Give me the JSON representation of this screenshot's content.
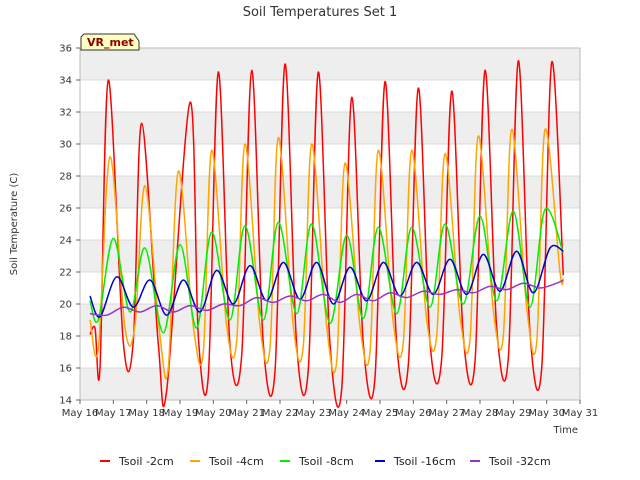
{
  "chart_data": {
    "type": "line",
    "title": "Soil Temperatures Set 1",
    "xlabel": "Time",
    "ylabel": "Soil Temperature (C)",
    "badge": "VR_met",
    "xlim": [
      16,
      31
    ],
    "ylim": [
      14,
      36
    ],
    "x_ticks": [
      "May 16",
      "May 17",
      "May 18",
      "May 19",
      "May 20",
      "May 21",
      "May 22",
      "May 23",
      "May 24",
      "May 25",
      "May 26",
      "May 27",
      "May 28",
      "May 29",
      "May 30",
      "May 31"
    ],
    "y_ticks": [
      14,
      16,
      18,
      20,
      22,
      24,
      26,
      28,
      30,
      32,
      34,
      36
    ],
    "grid": true,
    "legend_position": "bottom",
    "x_unit": "day of May",
    "series": [
      {
        "name": "Tsoil -2cm",
        "color": "#ff0000",
        "x": [
          16.3,
          16.45,
          16.6,
          16.85,
          17.3,
          17.6,
          17.85,
          18.35,
          18.6,
          19.3,
          19.55,
          19.85,
          20.15,
          20.5,
          20.85,
          21.15,
          21.5,
          21.85,
          22.15,
          22.5,
          22.85,
          23.15,
          23.5,
          23.85,
          24.15,
          24.5,
          24.85,
          25.15,
          25.5,
          25.85,
          26.15,
          26.5,
          26.85,
          27.15,
          27.5,
          27.85,
          28.15,
          28.5,
          28.85,
          29.15,
          29.5,
          29.85,
          30.15,
          30.5
        ],
        "y": [
          18.1,
          18.5,
          16.0,
          34.0,
          17.6,
          17.7,
          31.3,
          17.5,
          14.6,
          32.6,
          18.0,
          15.5,
          34.5,
          17.4,
          16.8,
          34.6,
          17.5,
          15.8,
          35.0,
          17.4,
          15.9,
          34.5,
          17.5,
          14.7,
          32.9,
          17.5,
          15.4,
          33.9,
          17.5,
          16.2,
          33.5,
          17.6,
          16.6,
          33.3,
          18.0,
          16.4,
          34.6,
          18.5,
          16.6,
          35.2,
          18.2,
          16.0,
          35.1,
          21.8
        ]
      },
      {
        "name": "Tsoil -4cm",
        "color": "#ffa500",
        "x": [
          16.3,
          16.55,
          16.9,
          17.35,
          17.65,
          17.95,
          18.4,
          18.65,
          18.95,
          19.4,
          19.7,
          19.95,
          20.4,
          20.7,
          20.95,
          21.4,
          21.7,
          21.95,
          22.4,
          22.7,
          22.95,
          23.4,
          23.7,
          23.95,
          24.4,
          24.7,
          24.95,
          25.4,
          25.7,
          25.95,
          26.4,
          26.7,
          26.95,
          27.4,
          27.7,
          27.95,
          28.4,
          28.7,
          28.95,
          29.4,
          29.7,
          29.95,
          30.4,
          30.5
        ],
        "y": [
          19.0,
          17.2,
          29.2,
          18.5,
          18.7,
          27.4,
          18.0,
          16.0,
          28.3,
          18.6,
          17.0,
          29.6,
          18.6,
          17.7,
          30.0,
          18.6,
          17.3,
          30.4,
          18.6,
          17.4,
          30.0,
          18.6,
          16.4,
          28.8,
          18.6,
          17.0,
          29.6,
          18.8,
          17.6,
          29.6,
          19.0,
          18.0,
          29.4,
          19.2,
          17.8,
          30.5,
          19.6,
          18.0,
          30.9,
          19.8,
          17.6,
          30.9,
          22.0,
          21.6
        ]
      },
      {
        "name": "Tsoil -8cm",
        "color": "#00ee00",
        "x": [
          16.3,
          16.55,
          17.0,
          17.5,
          17.95,
          18.5,
          19.0,
          19.5,
          19.95,
          20.5,
          20.95,
          21.5,
          21.95,
          22.5,
          22.95,
          23.5,
          24.0,
          24.5,
          24.95,
          25.5,
          25.95,
          26.5,
          26.95,
          27.5,
          28.0,
          28.5,
          29.0,
          29.5,
          29.95,
          30.5
        ],
        "y": [
          20.2,
          19.0,
          24.1,
          19.5,
          23.5,
          18.2,
          23.7,
          18.5,
          24.5,
          19.0,
          24.9,
          19.0,
          25.1,
          19.4,
          25.0,
          18.8,
          24.3,
          19.1,
          24.8,
          19.4,
          24.8,
          19.8,
          25.0,
          20.0,
          25.5,
          20.2,
          25.8,
          19.8,
          25.9,
          23.2
        ]
      },
      {
        "name": "Tsoil -16cm",
        "color": "#0000cc",
        "x": [
          16.3,
          16.6,
          17.1,
          17.6,
          18.1,
          18.6,
          19.1,
          19.6,
          20.1,
          20.6,
          21.1,
          21.6,
          22.1,
          22.6,
          23.1,
          23.6,
          24.1,
          24.6,
          25.1,
          25.6,
          26.1,
          26.6,
          27.1,
          27.6,
          28.1,
          28.6,
          29.1,
          29.6,
          30.1,
          30.5
        ],
        "y": [
          20.5,
          19.2,
          21.7,
          19.8,
          21.5,
          19.3,
          21.5,
          19.5,
          22.1,
          20.0,
          22.4,
          20.2,
          22.6,
          20.3,
          22.6,
          20.0,
          22.3,
          20.2,
          22.6,
          20.5,
          22.6,
          20.6,
          22.8,
          20.6,
          23.1,
          20.8,
          23.3,
          20.7,
          23.5,
          23.3
        ]
      },
      {
        "name": "Tsoil -32cm",
        "color": "#9933cc",
        "x": [
          16.3,
          16.8,
          17.3,
          17.8,
          18.3,
          18.8,
          19.3,
          19.8,
          20.3,
          20.8,
          21.3,
          21.8,
          22.3,
          22.8,
          23.3,
          23.8,
          24.3,
          24.8,
          25.3,
          25.8,
          26.3,
          26.8,
          27.3,
          27.8,
          28.3,
          28.8,
          29.3,
          29.8,
          30.3,
          30.5
        ],
        "y": [
          19.4,
          19.3,
          19.8,
          19.5,
          19.9,
          19.5,
          19.9,
          19.6,
          20.0,
          19.9,
          20.4,
          20.1,
          20.5,
          20.2,
          20.6,
          20.1,
          20.6,
          20.2,
          20.7,
          20.4,
          20.8,
          20.6,
          20.9,
          20.7,
          21.1,
          20.9,
          21.3,
          21.0,
          21.3,
          21.5
        ]
      }
    ]
  }
}
